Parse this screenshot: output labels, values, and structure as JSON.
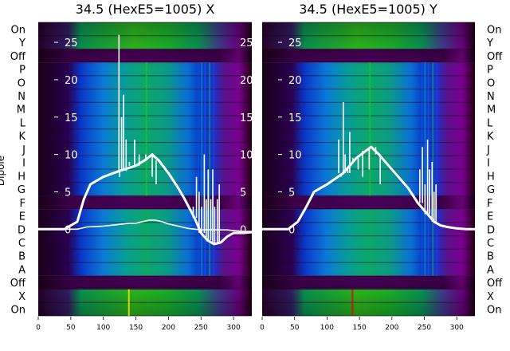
{
  "chart_data": [
    {
      "type": "heatmap",
      "title": "34.5 (HexE5=1005) X",
      "ylabel": "Dipole",
      "x_ticks": [
        0,
        50,
        100,
        150,
        200,
        250,
        300
      ],
      "xlim": [
        0,
        328
      ],
      "inner_y_ticks": [
        "25",
        "20",
        "15",
        "10",
        "5",
        "0"
      ],
      "inner_ylim": [
        -3.5,
        28
      ],
      "row_labels_top_to_bottom": [
        "On",
        "Y",
        "Off",
        "P",
        "O",
        "N",
        "M",
        "L",
        "K",
        "J",
        "I",
        "H",
        "G",
        "F",
        "E",
        "D",
        "C",
        "B",
        "A",
        "Off",
        "X",
        "On"
      ],
      "profile_thick": [
        [
          0,
          0
        ],
        [
          40,
          0
        ],
        [
          60,
          1
        ],
        [
          70,
          4
        ],
        [
          80,
          6
        ],
        [
          100,
          7
        ],
        [
          125,
          7.8
        ],
        [
          150,
          8.5
        ],
        [
          165,
          9.3
        ],
        [
          175,
          10
        ],
        [
          185,
          9.2
        ],
        [
          200,
          7.5
        ],
        [
          215,
          5.5
        ],
        [
          225,
          4
        ],
        [
          240,
          1.5
        ],
        [
          250,
          -0.5
        ],
        [
          260,
          -1.5
        ],
        [
          270,
          -2
        ],
        [
          280,
          -1.8
        ],
        [
          290,
          -1
        ],
        [
          300,
          -0.5
        ],
        [
          315,
          -0.5
        ],
        [
          328,
          -0.4
        ]
      ],
      "profile_thin": [
        [
          0,
          0
        ],
        [
          50,
          0
        ],
        [
          60,
          0
        ],
        [
          75,
          0.3
        ],
        [
          100,
          0.4
        ],
        [
          120,
          0.6
        ],
        [
          140,
          0.8
        ],
        [
          150,
          0.8
        ],
        [
          160,
          1.0
        ],
        [
          170,
          1.2
        ],
        [
          180,
          1.2
        ],
        [
          190,
          1.0
        ],
        [
          200,
          0.7
        ],
        [
          215,
          0.4
        ],
        [
          230,
          0.1
        ],
        [
          250,
          -0.1
        ],
        [
          270,
          -0.1
        ],
        [
          290,
          -0.1
        ],
        [
          300,
          -0.2
        ],
        [
          315,
          -0.3
        ],
        [
          328,
          -0.3
        ]
      ],
      "spikes": [
        [
          124,
          26
        ],
        [
          125,
          7
        ],
        [
          128,
          15
        ],
        [
          131,
          18
        ],
        [
          135,
          12
        ],
        [
          140,
          9
        ],
        [
          148,
          12
        ],
        [
          155,
          10
        ],
        [
          165,
          10
        ],
        [
          175,
          7
        ],
        [
          181,
          6
        ],
        [
          238,
          3
        ],
        [
          243,
          7
        ],
        [
          247,
          5
        ],
        [
          251,
          3
        ],
        [
          255,
          10
        ],
        [
          258,
          4
        ],
        [
          261,
          8
        ],
        [
          265,
          4
        ],
        [
          268,
          8
        ],
        [
          271,
          3
        ],
        [
          275,
          4
        ],
        [
          278,
          6
        ]
      ]
    },
    {
      "type": "heatmap",
      "title": "34.5 (HexE5=1005) Y",
      "x_ticks": [
        0,
        50,
        100,
        150,
        200,
        250,
        300
      ],
      "xlim": [
        0,
        328
      ],
      "inner_y_ticks": [
        "25",
        "20",
        "15",
        "10",
        "5",
        "0"
      ],
      "inner_ylim": [
        -3.5,
        28
      ],
      "row_labels_top_to_bottom": [
        "On",
        "Y",
        "Off",
        "P",
        "O",
        "N",
        "M",
        "L",
        "K",
        "J",
        "I",
        "H",
        "G",
        "F",
        "E",
        "D",
        "C",
        "B",
        "A",
        "Off",
        "X",
        "On"
      ],
      "profile_thick": [
        [
          0,
          0
        ],
        [
          40,
          0
        ],
        [
          55,
          1
        ],
        [
          68,
          3
        ],
        [
          80,
          5
        ],
        [
          100,
          6
        ],
        [
          125,
          7.5
        ],
        [
          145,
          9.5
        ],
        [
          160,
          10.5
        ],
        [
          168,
          11
        ],
        [
          180,
          10
        ],
        [
          195,
          8.5
        ],
        [
          210,
          7
        ],
        [
          225,
          5.5
        ],
        [
          240,
          3.5
        ],
        [
          255,
          2
        ],
        [
          265,
          1
        ],
        [
          275,
          0.5
        ],
        [
          285,
          0.3
        ],
        [
          300,
          0.1
        ],
        [
          315,
          0
        ],
        [
          328,
          0
        ]
      ],
      "spikes": [
        [
          118,
          12
        ],
        [
          122,
          7
        ],
        [
          125,
          17
        ],
        [
          128,
          10
        ],
        [
          132,
          8
        ],
        [
          135,
          13
        ],
        [
          140,
          9
        ],
        [
          148,
          8
        ],
        [
          155,
          7
        ],
        [
          165,
          8
        ],
        [
          175,
          11
        ],
        [
          182,
          6
        ],
        [
          238,
          4
        ],
        [
          243,
          8
        ],
        [
          247,
          11
        ],
        [
          251,
          6
        ],
        [
          255,
          12
        ],
        [
          258,
          8
        ],
        [
          262,
          9
        ],
        [
          265,
          5
        ],
        [
          268,
          6
        ]
      ]
    }
  ]
}
